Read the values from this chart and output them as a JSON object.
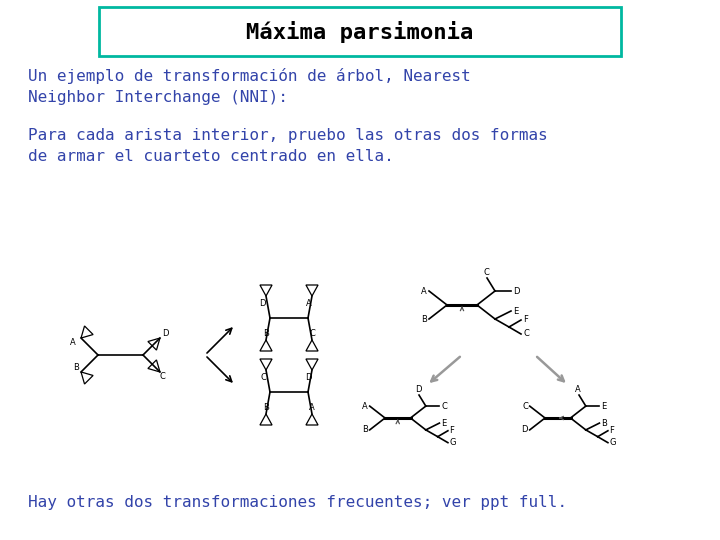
{
  "title": "Máxima parsimonia",
  "title_color": "#000000",
  "title_border": "#00b8a0",
  "text1": "Un ejemplo de transformación de árbol, Nearest\nNeighbor Interchange (NNI):",
  "text2": "Para cada arista interior, pruebo las otras dos formas\nde armar el cuarteto centrado en ella.",
  "text3": "Hay otras dos transformaciones frecuentes; ver ppt full.",
  "text_color": "#3344aa",
  "bg_color": "#ffffff",
  "tree_color": "#000000",
  "label_fontsize": 6,
  "body_fontsize": 11.5,
  "title_fontsize": 16
}
